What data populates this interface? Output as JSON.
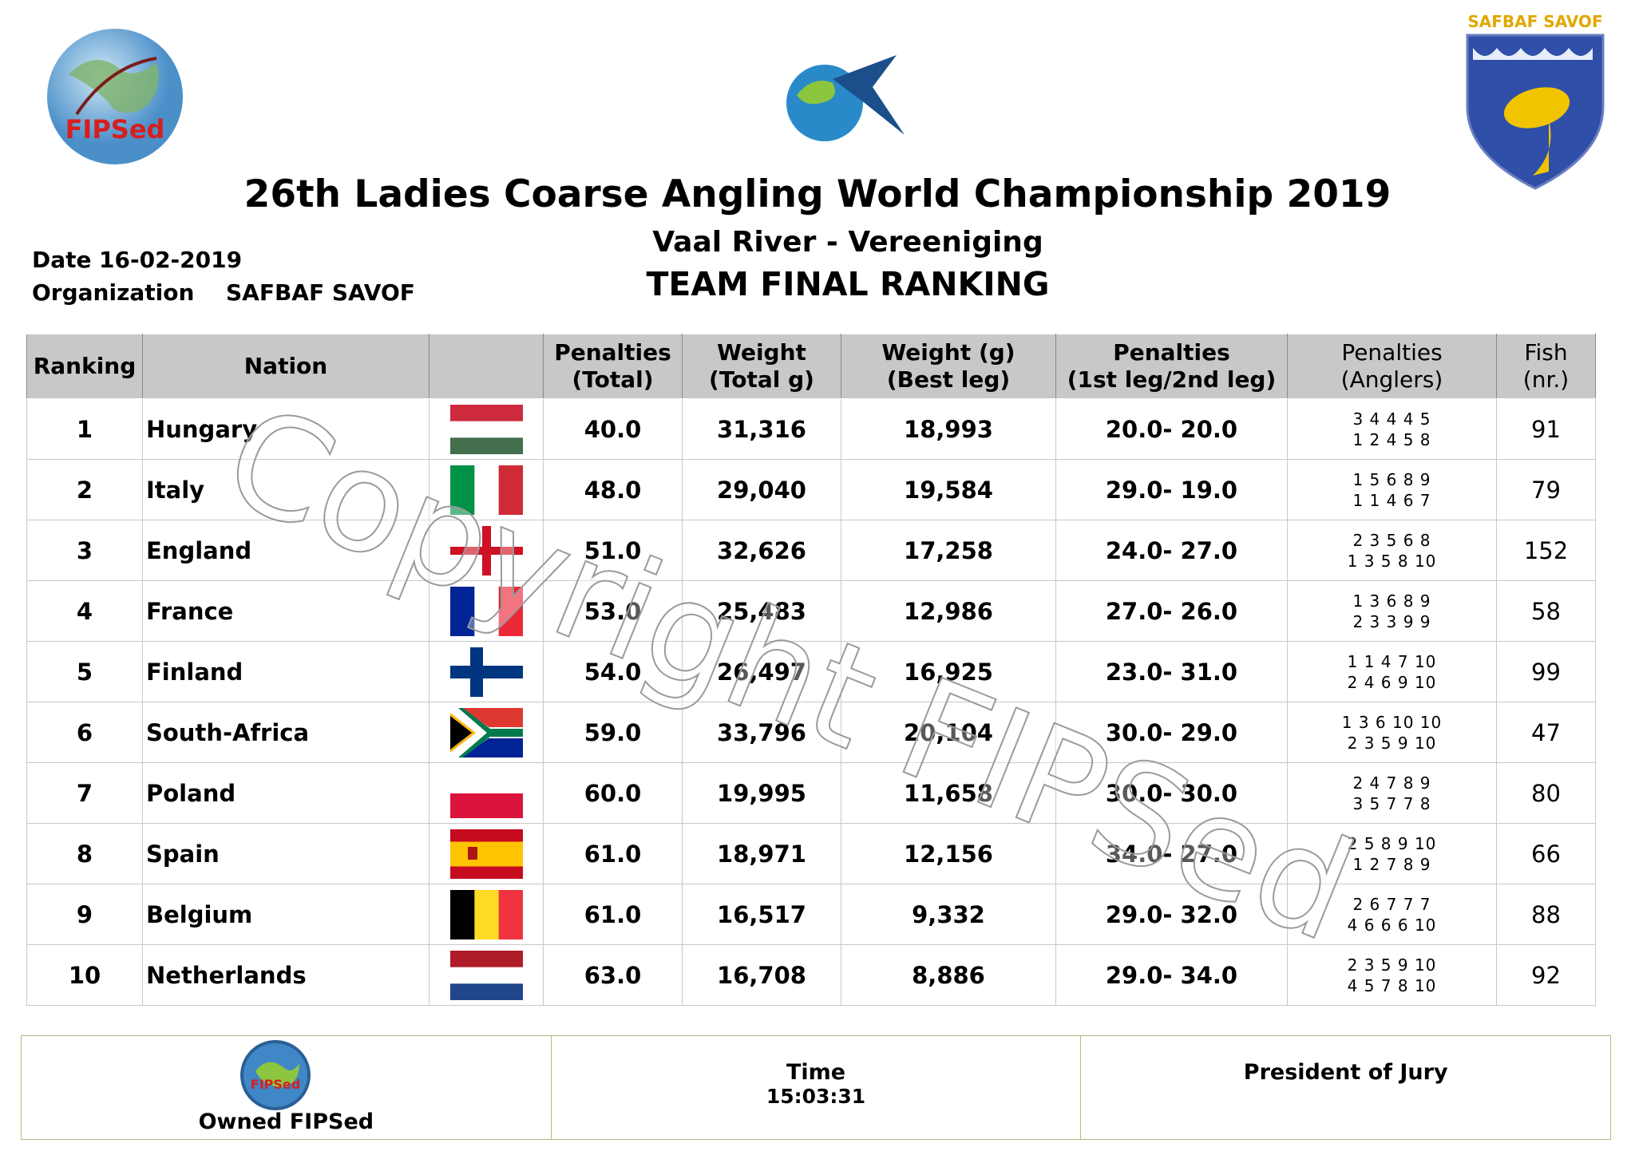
{
  "header": {
    "logo_left": "FIPSed",
    "logo_right": "SAFBAF SAVOF",
    "title": "26th Ladies Coarse Angling World Championship 2019",
    "venue": "Vaal River - Vereeniging",
    "subtitle": "TEAM FINAL RANKING",
    "date_label": "Date",
    "date": "16-02-2019",
    "organization_label": "Organization",
    "organization": "SAFBAF SAVOF"
  },
  "table": {
    "columns": [
      [
        "Ranking"
      ],
      [
        "Nation"
      ],
      [
        "Penalties",
        "(Total)"
      ],
      [
        "Weight",
        "(Total g)"
      ],
      [
        "Weight (g)",
        "(Best leg)"
      ],
      [
        "Penalties",
        "(1st leg/2nd leg)"
      ],
      [
        "Penalties",
        "(Anglers)"
      ],
      [
        "Fish",
        "(nr.)"
      ]
    ],
    "rows": [
      [
        "1",
        "Hungary",
        "40.0",
        "31,316",
        "18,993",
        "20.0- 20.0",
        [
          "3 4 4 4 5",
          "1 2 4 5 8"
        ],
        "91"
      ],
      [
        "2",
        "Italy",
        "48.0",
        "29,040",
        "19,584",
        "29.0- 19.0",
        [
          "1 5 6 8 9",
          "1 1 4 6 7"
        ],
        "79"
      ],
      [
        "3",
        "England",
        "51.0",
        "32,626",
        "17,258",
        "24.0- 27.0",
        [
          "2 3 5 6 8",
          "1 3 5 8 10"
        ],
        "152"
      ],
      [
        "4",
        "France",
        "53.0",
        "25,483",
        "12,986",
        "27.0- 26.0",
        [
          "1 3 6 8 9",
          "2 3 3 9 9"
        ],
        "58"
      ],
      [
        "5",
        "Finland",
        "54.0",
        "26,497",
        "16,925",
        "23.0- 31.0",
        [
          "1 1 4 7 10",
          "2 4 6 9 10"
        ],
        "99"
      ],
      [
        "6",
        "South-Africa",
        "59.0",
        "33,796",
        "20,104",
        "30.0- 29.0",
        [
          "1 3 6 10 10",
          "2 3 5 9 10"
        ],
        "47"
      ],
      [
        "7",
        "Poland",
        "60.0",
        "19,995",
        "11,658",
        "30.0- 30.0",
        [
          "2 4 7 8 9",
          "3 5 7 7 8"
        ],
        "80"
      ],
      [
        "8",
        "Spain",
        "61.0",
        "18,971",
        "12,156",
        "34.0- 27.0",
        [
          "2 5 8 9 10",
          "1 2 7 8 9"
        ],
        "66"
      ],
      [
        "9",
        "Belgium",
        "61.0",
        "16,517",
        "9,332",
        "29.0- 32.0",
        [
          "2 6 7 7 7",
          "4 6 6 6 10"
        ],
        "88"
      ],
      [
        "10",
        "Netherlands",
        "63.0",
        "16,708",
        "8,886",
        "29.0- 34.0",
        [
          "2 3 5 9 10",
          "4 5 7 8 10"
        ],
        "92"
      ]
    ]
  },
  "watermark": "Copyright FIPSed",
  "footer": {
    "owner": "Owned FIPSed",
    "owner_logo": "FIPSed",
    "time_label": "Time",
    "time": "15:03:31",
    "jury": "President of Jury"
  }
}
